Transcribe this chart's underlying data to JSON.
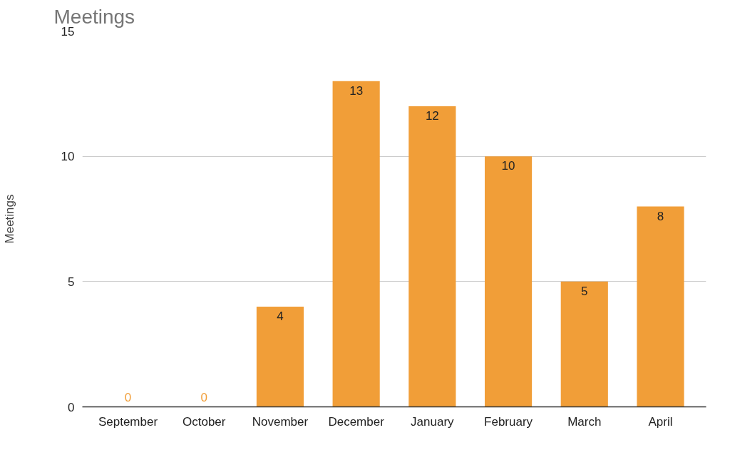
{
  "chart_data": {
    "type": "bar",
    "title": "Meetings",
    "ylabel": "Meetings",
    "categories": [
      "September",
      "October",
      "November",
      "December",
      "January",
      "February",
      "March",
      "April"
    ],
    "values": [
      0,
      0,
      4,
      13,
      12,
      10,
      5,
      8
    ],
    "color": "#f19e38",
    "ylim": [
      0,
      15
    ],
    "yticks": [
      0,
      5,
      10,
      15
    ],
    "grid": "y",
    "data_labels": true
  }
}
